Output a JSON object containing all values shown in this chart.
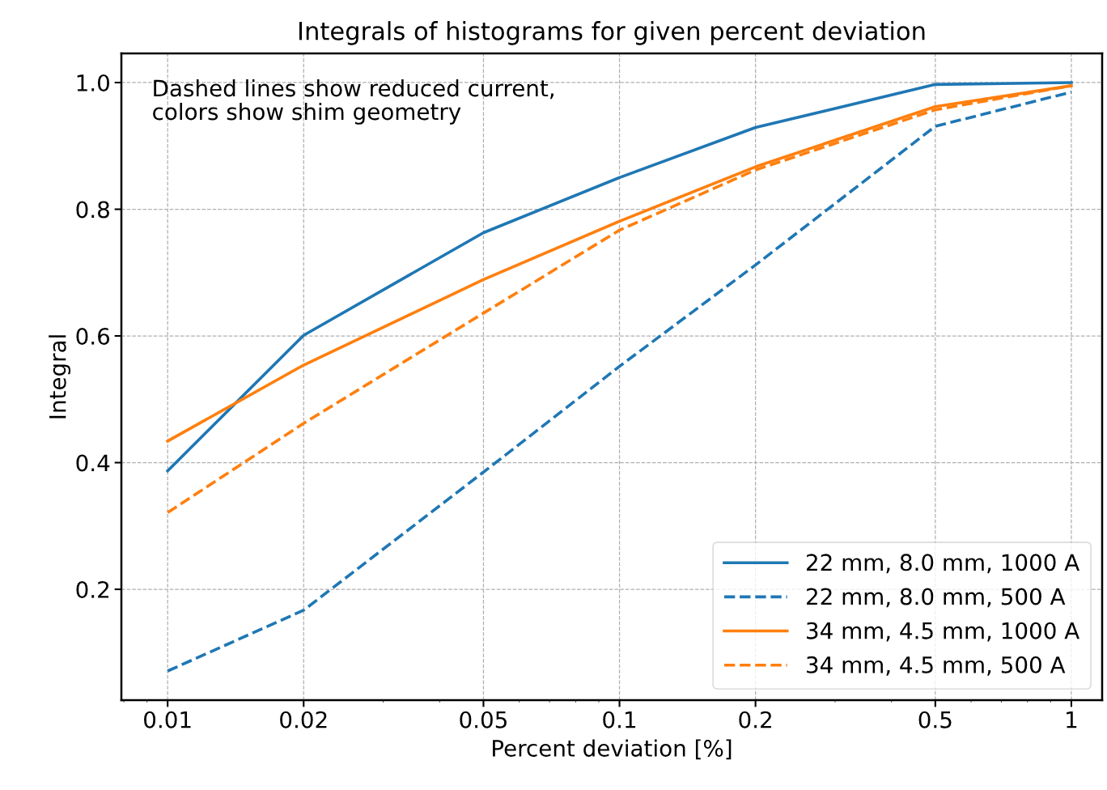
{
  "chart_data": {
    "type": "line",
    "title": "Integrals of histograms for given percent deviation",
    "xlabel": "Percent deviation [%]",
    "ylabel": "Integral",
    "annotations": [
      "Dashed lines show reduced current,\ncolors show shim geometry"
    ],
    "x": [
      0.01,
      0.02,
      0.05,
      0.1,
      0.2,
      0.5,
      1
    ],
    "series": [
      {
        "name": "22 mm, 8.0 mm, 1000 A",
        "color": "#1f77b4",
        "line_style": "solid",
        "values": [
          0.387,
          0.601,
          0.763,
          0.85,
          0.929,
          0.997,
          1.0
        ]
      },
      {
        "name": "22 mm, 8.0 mm, 500 A",
        "color": "#1f77b4",
        "line_style": "dashed",
        "values": [
          0.071,
          0.167,
          0.385,
          0.552,
          0.712,
          0.931,
          0.985
        ]
      },
      {
        "name": "34 mm, 4.5 mm, 1000 A",
        "color": "#ff7f0e",
        "line_style": "solid",
        "values": [
          0.434,
          0.554,
          0.689,
          0.781,
          0.867,
          0.962,
          0.995
        ]
      },
      {
        "name": "34 mm, 4.5 mm, 500 A",
        "color": "#ff7f0e",
        "line_style": "dashed",
        "values": [
          0.321,
          0.462,
          0.636,
          0.767,
          0.862,
          0.957,
          0.995
        ]
      }
    ],
    "log": "x",
    "xlim": [
      0.0079,
      1.17
    ],
    "ylim": [
      0.025,
      1.046
    ],
    "xticks": [
      0.01,
      0.02,
      0.05,
      0.1,
      0.2,
      0.5,
      1
    ],
    "yticks": [
      {
        "value": 0.2,
        "label": "0.2"
      },
      {
        "value": 0.4,
        "label": "0.4"
      },
      {
        "value": 0.6,
        "label": "0.6"
      },
      {
        "value": 0.8,
        "label": "0.8"
      },
      {
        "value": 1.0,
        "label": "1.0"
      }
    ],
    "grid": true,
    "legend": "bottom right",
    "marker": "none"
  }
}
